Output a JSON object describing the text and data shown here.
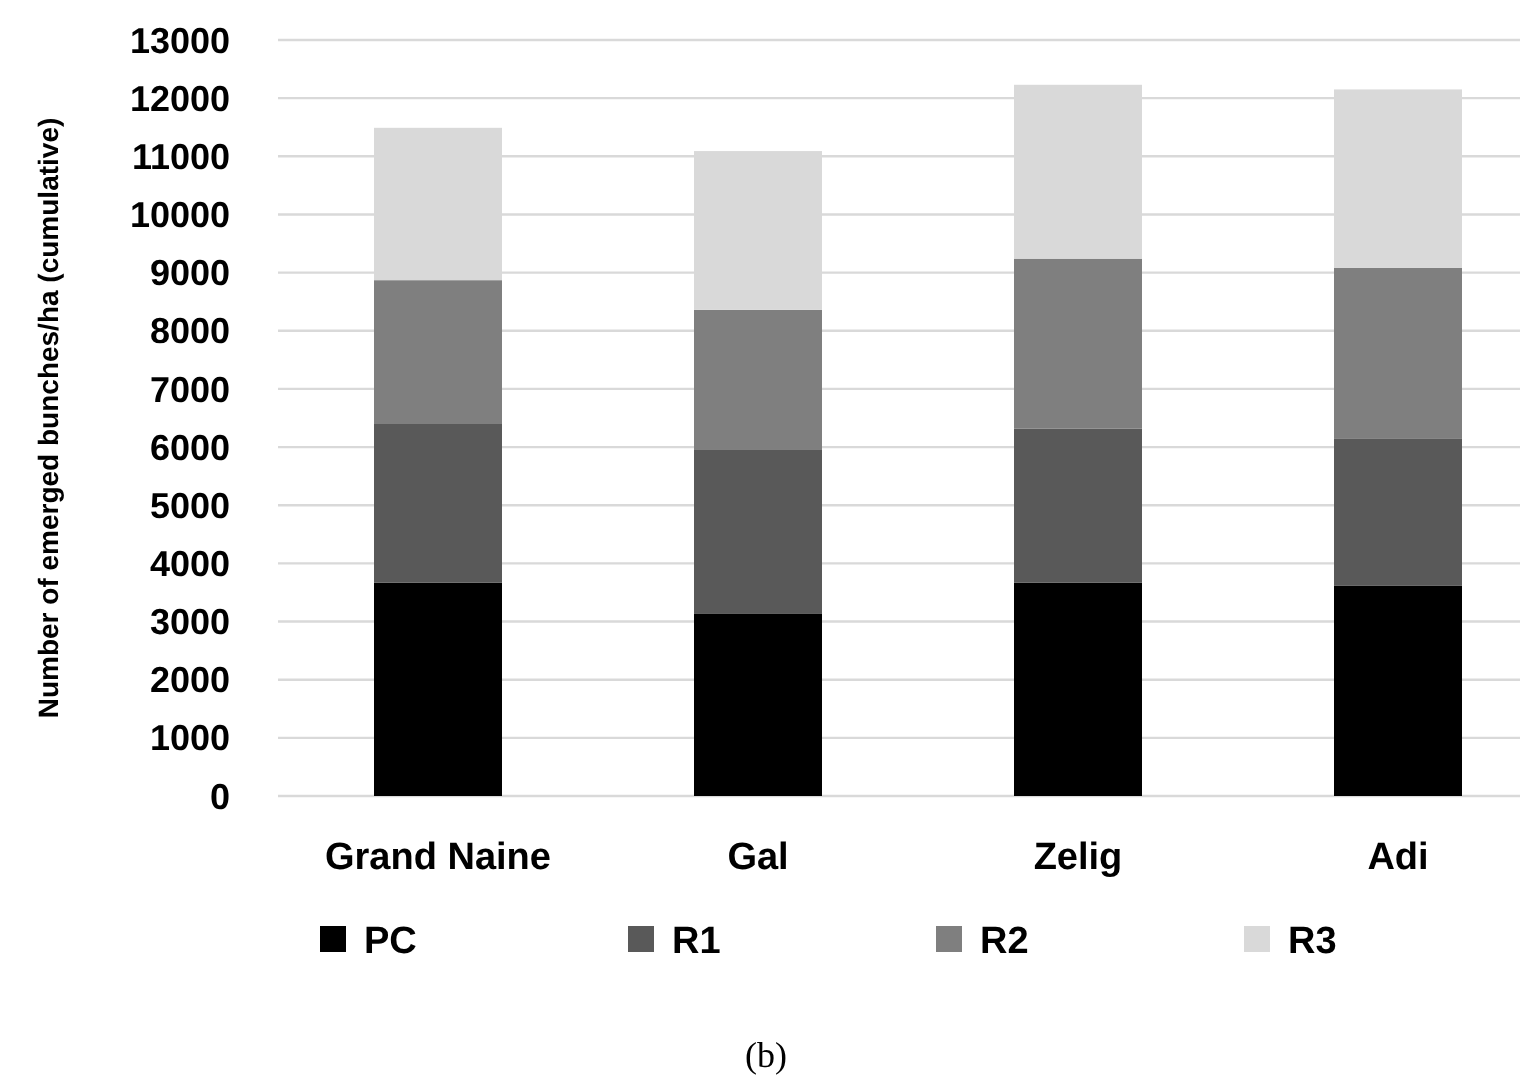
{
  "chart_data": {
    "type": "bar",
    "stacked": true,
    "ylabel": "Number of emerged bunches/ha (cumulative)",
    "categories": [
      "Grand Naine",
      "Gal",
      "Zelig",
      "Adi"
    ],
    "series": [
      {
        "name": "PC",
        "color": "#000000",
        "values": [
          3670,
          3140,
          3670,
          3620
        ]
      },
      {
        "name": "R1",
        "color": "#595959",
        "values": [
          2740,
          2810,
          2650,
          2520
        ]
      },
      {
        "name": "R2",
        "color": "#7f7f7f",
        "values": [
          2460,
          2410,
          2920,
          2940
        ]
      },
      {
        "name": "R3",
        "color": "#d9d9d9",
        "values": [
          2620,
          2730,
          2990,
          3070
        ]
      }
    ],
    "ylim": [
      0,
      13000
    ],
    "yticks": [
      0,
      1000,
      2000,
      3000,
      4000,
      5000,
      6000,
      7000,
      8000,
      9000,
      10000,
      11000,
      12000,
      13000
    ],
    "grid": "y",
    "legend": "bottom",
    "annotations": [
      "(b)"
    ]
  }
}
